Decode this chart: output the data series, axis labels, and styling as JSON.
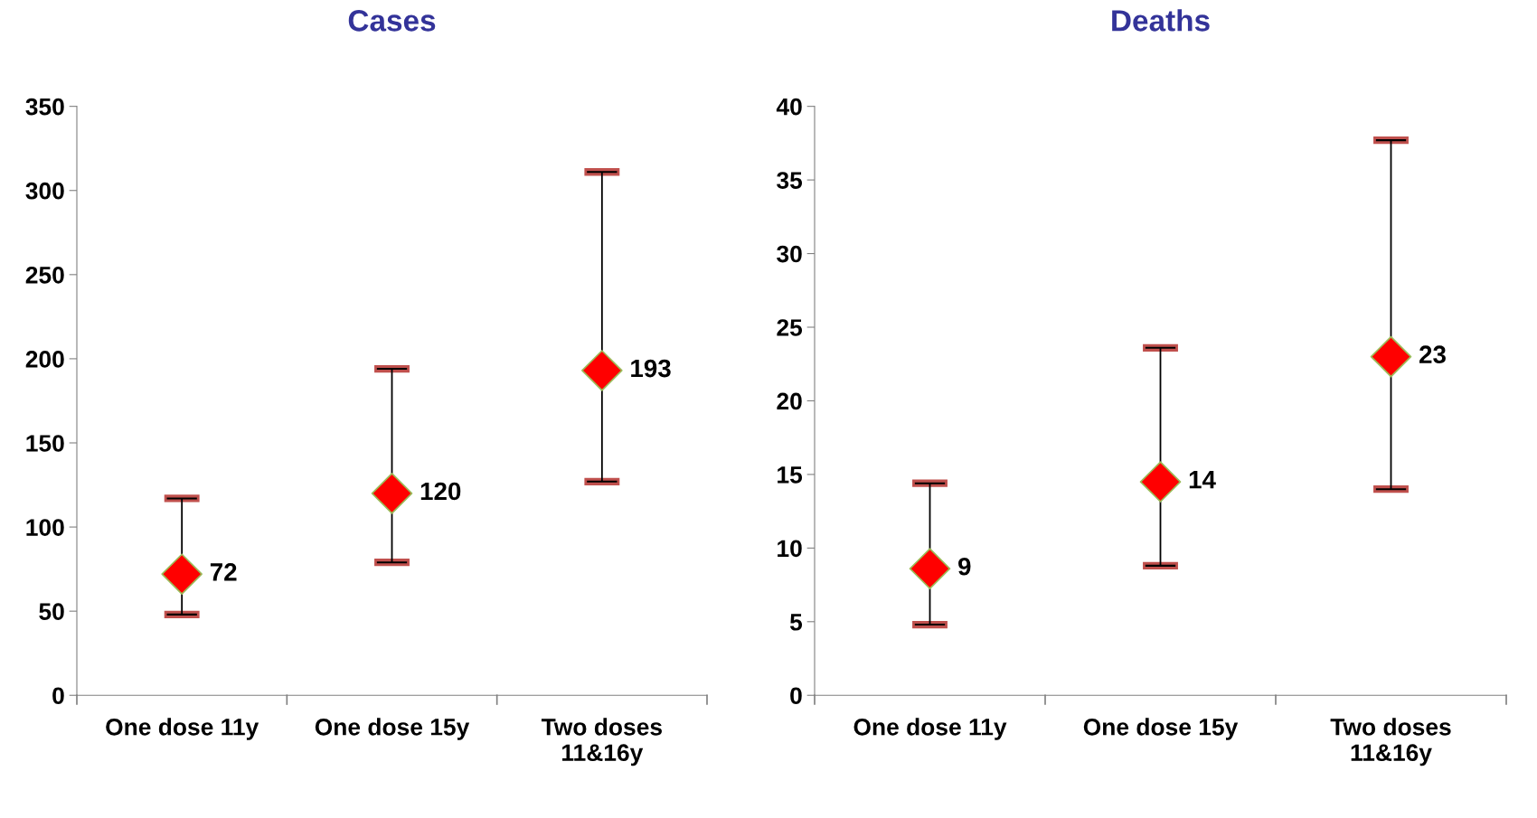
{
  "chart_data": [
    {
      "type": "scatter",
      "title": "Cases",
      "categories": [
        "One dose 11y",
        "One dose 15y",
        "Two doses\n11&16y"
      ],
      "values": [
        72,
        120,
        193
      ],
      "errors": [
        [
          48,
          117
        ],
        [
          79,
          194
        ],
        [
          127,
          311
        ]
      ],
      "value_labels": [
        "72",
        "120",
        "193"
      ],
      "color": "#ff0000",
      "marker": "diamond",
      "ylim": [
        0,
        350
      ],
      "yticks": [
        0,
        50,
        100,
        150,
        200,
        250,
        300,
        350
      ],
      "grid": false,
      "legend": false
    },
    {
      "type": "scatter",
      "title": "Deaths",
      "categories": [
        "One dose 11y",
        "One dose 15y",
        "Two doses\n11&16y"
      ],
      "values": [
        8.6,
        14.5,
        23
      ],
      "errors": [
        [
          4.8,
          14.4
        ],
        [
          8.8,
          23.6
        ],
        [
          14,
          37.7
        ]
      ],
      "value_labels": [
        "9",
        "14",
        "23"
      ],
      "color": "#ff0000",
      "marker": "diamond",
      "ylim": [
        0,
        40
      ],
      "yticks": [
        0,
        5,
        10,
        15,
        20,
        25,
        30,
        35,
        40
      ],
      "grid": false,
      "legend": false
    }
  ]
}
